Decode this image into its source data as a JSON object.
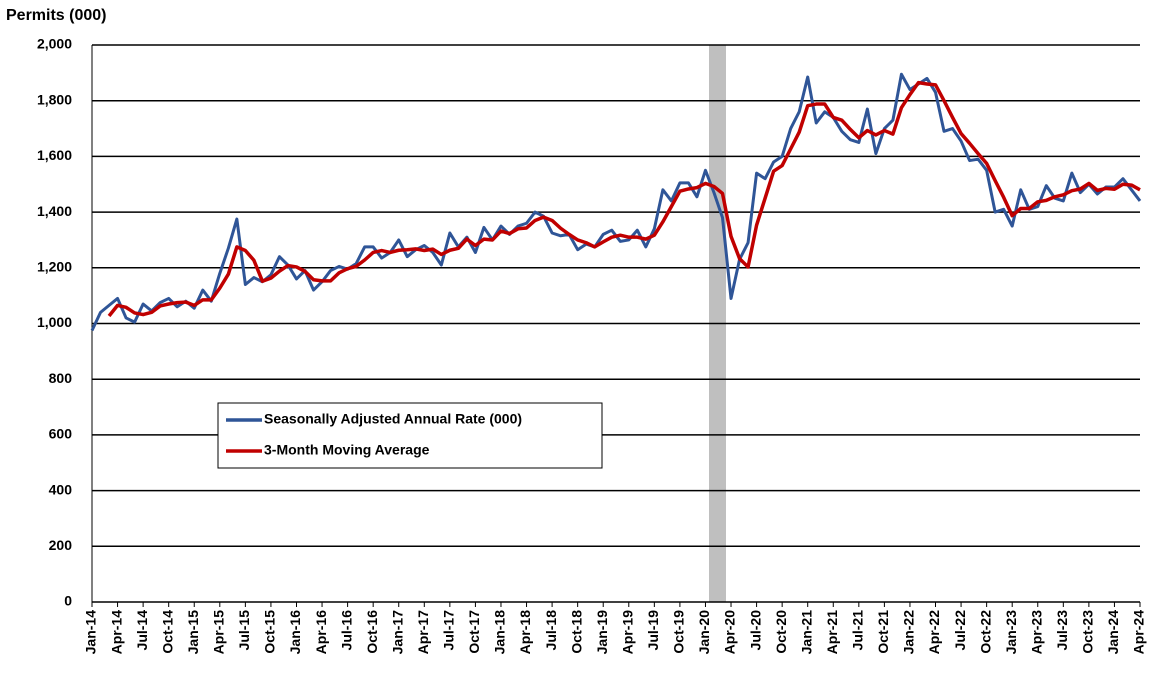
{
  "chart_data": {
    "type": "line",
    "title": "Permits (000)",
    "categories": [
      "Jan-14",
      null,
      null,
      "Apr-14",
      null,
      null,
      "Jul-14",
      null,
      null,
      "Oct-14",
      null,
      null,
      "Jan-15",
      null,
      null,
      "Apr-15",
      null,
      null,
      "Jul-15",
      null,
      null,
      "Oct-15",
      null,
      null,
      "Jan-16",
      null,
      null,
      "Apr-16",
      null,
      null,
      "Jul-16",
      null,
      null,
      "Oct-16",
      null,
      null,
      "Jan-17",
      null,
      null,
      "Apr-17",
      null,
      null,
      "Jul-17",
      null,
      null,
      "Oct-17",
      null,
      null,
      "Jan-18",
      null,
      null,
      "Apr-18",
      null,
      null,
      "Jul-18",
      null,
      null,
      "Oct-18",
      null,
      null,
      "Jan-19",
      null,
      null,
      "Apr-19",
      null,
      null,
      "Jul-19",
      null,
      null,
      "Oct-19",
      null,
      null,
      "Jan-20",
      null,
      null,
      "Apr-20",
      null,
      null,
      "Jul-20",
      null,
      null,
      "Oct-20",
      null,
      null,
      "Jan-21",
      null,
      null,
      "Apr-21",
      null,
      null,
      "Jul-21",
      null,
      null,
      "Oct-21",
      null,
      null,
      "Jan-22",
      null,
      null,
      "Apr-22",
      null,
      null,
      "Jul-22",
      null,
      null,
      "Oct-22",
      null,
      null,
      "Jan-23",
      null,
      null,
      "Apr-23",
      null,
      null,
      "Jul-23",
      null,
      null,
      "Oct-23",
      null,
      null,
      "Jan-24",
      null,
      null,
      "Apr-24"
    ],
    "series": [
      {
        "name": "Seasonally Adjusted Annual Rate (000)",
        "color": "#2f5597",
        "values": [
          975,
          1040,
          1065,
          1090,
          1020,
          1005,
          1070,
          1045,
          1075,
          1090,
          1060,
          1080,
          1055,
          1120,
          1080,
          1180,
          1270,
          1375,
          1140,
          1165,
          1150,
          1175,
          1240,
          1210,
          1160,
          1190,
          1120,
          1150,
          1190,
          1205,
          1195,
          1215,
          1275,
          1275,
          1235,
          1255,
          1300,
          1240,
          1265,
          1280,
          1255,
          1210,
          1325,
          1275,
          1310,
          1255,
          1345,
          1300,
          1350,
          1320,
          1350,
          1360,
          1400,
          1385,
          1325,
          1315,
          1320,
          1265,
          1285,
          1275,
          1320,
          1335,
          1295,
          1300,
          1335,
          1275,
          1340,
          1480,
          1440,
          1505,
          1505,
          1455,
          1550,
          1470,
          1380,
          1090,
          1230,
          1290,
          1540,
          1520,
          1580,
          1600,
          1700,
          1760,
          1885,
          1720,
          1760,
          1740,
          1690,
          1660,
          1650,
          1770,
          1610,
          1700,
          1730,
          1895,
          1840,
          1860,
          1880,
          1830,
          1690,
          1700,
          1655,
          1585,
          1590,
          1550,
          1400,
          1410,
          1350,
          1480,
          1410,
          1420,
          1495,
          1450,
          1440,
          1540,
          1470,
          1500,
          1465,
          1490,
          1490,
          1520,
          1480,
          1440
        ]
      },
      {
        "name": "3-Month Moving Average",
        "color": "#c00000",
        "values": [
          null,
          null,
          1027,
          1065,
          1058,
          1038,
          1032,
          1040,
          1063,
          1070,
          1075,
          1077,
          1065,
          1085,
          1085,
          1127,
          1177,
          1275,
          1262,
          1227,
          1152,
          1163,
          1188,
          1208,
          1203,
          1187,
          1157,
          1153,
          1153,
          1182,
          1197,
          1205,
          1228,
          1255,
          1262,
          1255,
          1263,
          1265,
          1268,
          1262,
          1267,
          1248,
          1263,
          1270,
          1303,
          1280,
          1303,
          1300,
          1332,
          1323,
          1340,
          1343,
          1370,
          1382,
          1370,
          1342,
          1320,
          1300,
          1290,
          1275,
          1293,
          1310,
          1317,
          1310,
          1310,
          1303,
          1317,
          1365,
          1420,
          1475,
          1483,
          1488,
          1503,
          1492,
          1467,
          1313,
          1233,
          1203,
          1353,
          1450,
          1547,
          1567,
          1627,
          1687,
          1782,
          1788,
          1788,
          1740,
          1730,
          1697,
          1667,
          1693,
          1677,
          1693,
          1680,
          1775,
          1822,
          1865,
          1860,
          1857,
          1800,
          1740,
          1682,
          1647,
          1610,
          1575,
          1513,
          1453,
          1387,
          1413,
          1413,
          1437,
          1442,
          1455,
          1462,
          1477,
          1483,
          1503,
          1478,
          1485,
          1482,
          1500,
          1497,
          1480
        ]
      }
    ],
    "ylim": [
      0,
      2000
    ],
    "yticks": [
      0,
      200,
      400,
      600,
      800,
      {
        "value": 1000,
        "label": "1,000"
      },
      {
        "value": 1200,
        "label": "1,200"
      },
      {
        "value": 1400,
        "label": "1,400"
      },
      {
        "value": 1600,
        "label": "1,600"
      },
      {
        "value": 1800,
        "label": "1,800"
      },
      {
        "value": 2000,
        "label": "2,000"
      }
    ],
    "grid": true,
    "legend": "center-left"
  }
}
